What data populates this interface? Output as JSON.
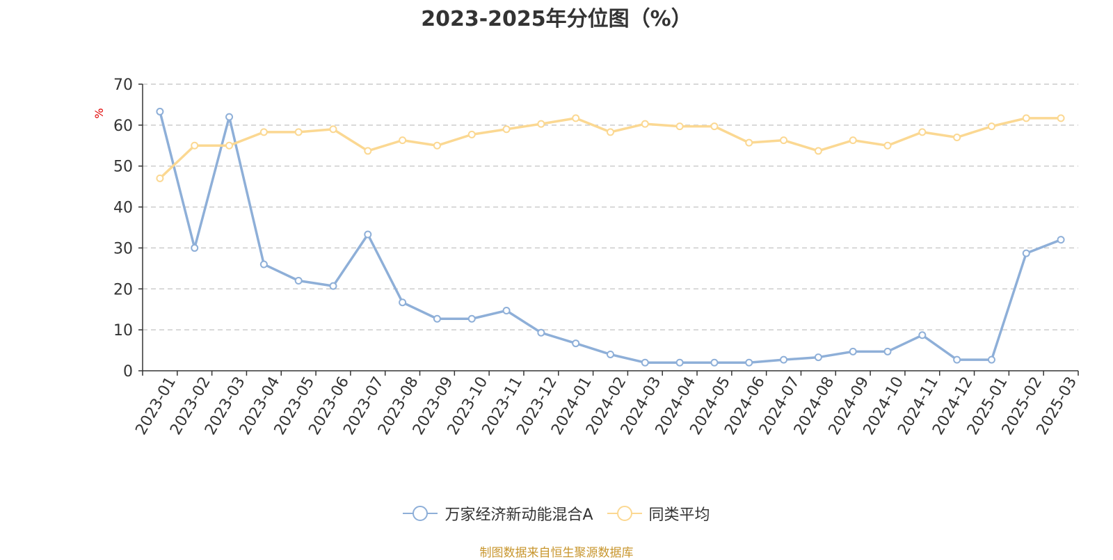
{
  "chart_data": {
    "type": "line",
    "title": "2023-2025年分位图（%）",
    "ylabel": "%",
    "xlabel": "",
    "ylim": [
      0,
      70
    ],
    "yticks": [
      0,
      10,
      20,
      30,
      40,
      50,
      60,
      70
    ],
    "grid": true,
    "legend_position": "bottom-center",
    "categories": [
      "2023-01",
      "2023-02",
      "2023-03",
      "2023-04",
      "2023-05",
      "2023-06",
      "2023-07",
      "2023-08",
      "2023-09",
      "2023-10",
      "2023-11",
      "2023-12",
      "2024-01",
      "2024-02",
      "2024-03",
      "2024-04",
      "2024-05",
      "2024-06",
      "2024-07",
      "2024-08",
      "2024-09",
      "2024-10",
      "2024-11",
      "2024-12",
      "2025-01",
      "2025-02",
      "2025-03"
    ],
    "series": [
      {
        "name": "万家经济新动能混合A",
        "color": "#8eafd8",
        "values": [
          63.3,
          30.0,
          62.0,
          26.0,
          22.0,
          20.7,
          33.3,
          16.7,
          12.7,
          12.7,
          14.7,
          9.3,
          6.7,
          4.0,
          2.0,
          2.0,
          2.0,
          2.0,
          2.7,
          3.3,
          4.7,
          4.7,
          8.7,
          2.7,
          2.7,
          28.7,
          32.0
        ]
      },
      {
        "name": "同类平均",
        "color": "#fbd892",
        "values": [
          47.0,
          55.0,
          55.0,
          58.3,
          58.3,
          59.0,
          53.7,
          56.3,
          55.0,
          57.7,
          59.0,
          60.3,
          61.7,
          58.3,
          60.3,
          59.7,
          59.7,
          55.7,
          56.3,
          53.7,
          56.3,
          55.0,
          58.3,
          57.0,
          59.7,
          61.7,
          61.7
        ]
      }
    ]
  },
  "source_note": "制图数据来自恒生聚源数据库"
}
